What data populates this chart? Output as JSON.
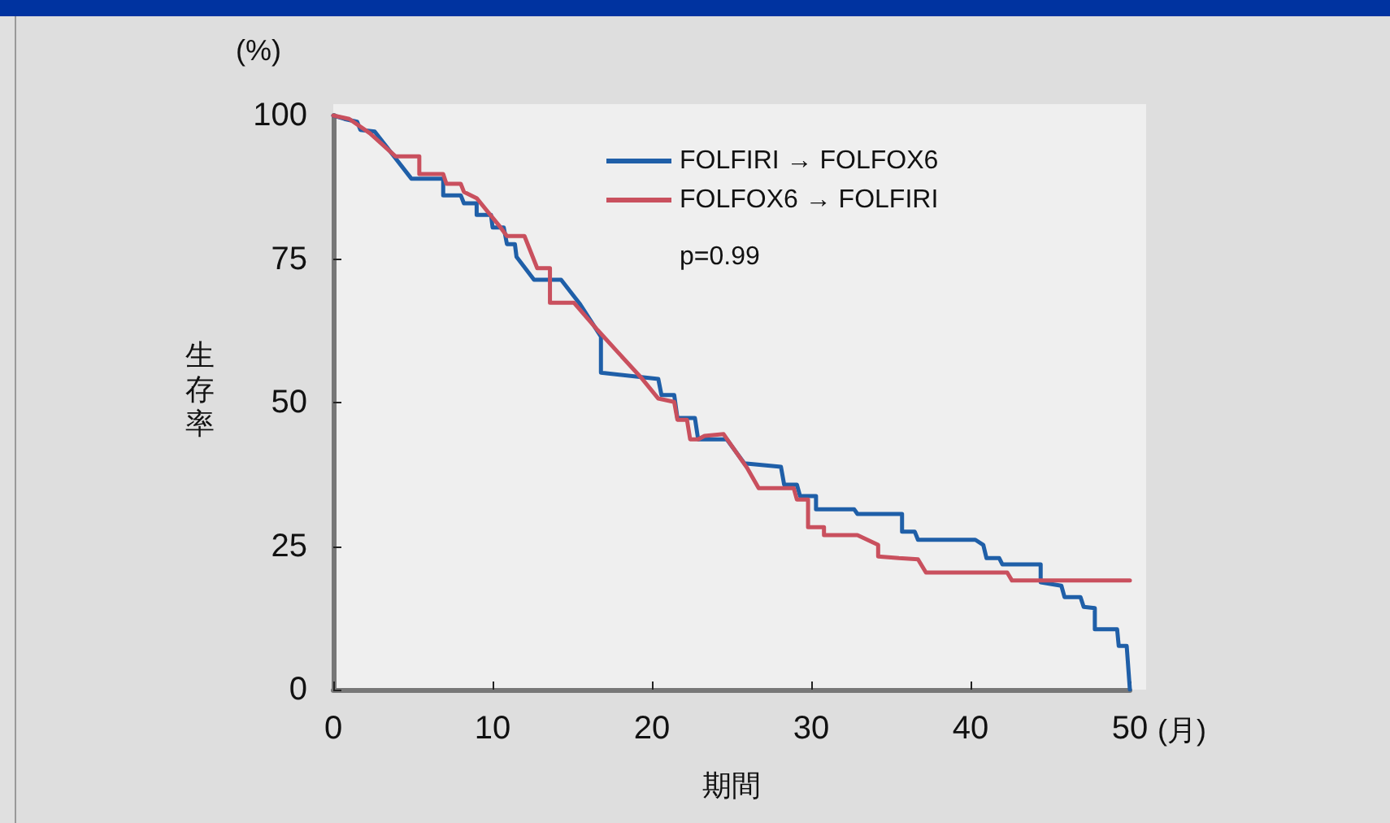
{
  "chart_data": {
    "type": "line",
    "xlabel": "期間",
    "ylabel": "生存率",
    "annotations": [
      "(%)",
      "(月)",
      "p=0.99"
    ],
    "xlim": [
      0,
      50
    ],
    "xticks": [
      0,
      10,
      20,
      30,
      40,
      50
    ],
    "ylim": [
      0,
      100
    ],
    "yticks": [
      0,
      25,
      50,
      75,
      100
    ],
    "grid": false,
    "legend": "top right",
    "marker": "none",
    "line_style": "solid",
    "series": [
      {
        "name": "FOLFIRI → FOLFOX6",
        "color": "#1f5fa8",
        "x": [
          0,
          0.7,
          1.5,
          1.7,
          2.6,
          4.9,
          6.9,
          6.9,
          8.0,
          8.2,
          9.0,
          9.0,
          9.9,
          10.0,
          10.7,
          10.9,
          11.4,
          11.5,
          12.6,
          14.3,
          15.5,
          16.8,
          16.8,
          20.4,
          20.6,
          21.4,
          21.6,
          22.7,
          22.9,
          24.7,
          25.8,
          28.1,
          28.3,
          29.1,
          29.3,
          30.3,
          30.3,
          32.7,
          32.9,
          35.7,
          35.7,
          36.5,
          36.7,
          40.3,
          40.8,
          41.0,
          41.8,
          42.0,
          44.4,
          44.4,
          45.7,
          45.9,
          46.9,
          47.1,
          47.8,
          47.8,
          49.2,
          49.3,
          49.8,
          50
        ],
        "values": [
          100,
          99.4,
          98.9,
          97.5,
          97.2,
          89.0,
          89.0,
          86.1,
          86.1,
          84.7,
          84.7,
          82.7,
          82.7,
          80.5,
          80.5,
          77.6,
          77.6,
          75.4,
          71.4,
          71.4,
          67.1,
          61.5,
          55.2,
          54.1,
          51.3,
          51.3,
          47.3,
          47.3,
          43.6,
          43.6,
          39.4,
          38.8,
          35.7,
          35.7,
          33.7,
          33.7,
          31.4,
          31.4,
          30.6,
          30.6,
          27.5,
          27.5,
          26.1,
          26.1,
          25.2,
          22.9,
          22.9,
          21.8,
          21.8,
          18.7,
          18.1,
          16.1,
          16.1,
          14.4,
          14.2,
          10.5,
          10.5,
          7.6,
          7.6,
          0
        ]
      },
      {
        "name": "FOLFOX6 → FOLFIRI",
        "color": "#c9505e",
        "x": [
          0,
          1.0,
          2.3,
          3.9,
          5.4,
          5.4,
          6.9,
          7.1,
          8.0,
          8.2,
          9.0,
          10.5,
          10.9,
          12.0,
          12.8,
          13.6,
          13.6,
          15.1,
          16.6,
          19.4,
          20.4,
          21.4,
          21.6,
          22.2,
          22.4,
          22.9,
          23.3,
          24.5,
          26.0,
          26.7,
          28.9,
          29.1,
          29.8,
          29.8,
          30.8,
          30.8,
          32.9,
          34.2,
          34.2,
          35.5,
          36.7,
          37.2,
          42.3,
          42.6,
          50
        ],
        "values": [
          100,
          99.4,
          96.9,
          92.9,
          92.9,
          89.8,
          89.8,
          88.1,
          88.1,
          86.7,
          85.6,
          80.5,
          79.0,
          79.0,
          73.4,
          73.4,
          67.4,
          67.4,
          62.6,
          54.1,
          50.7,
          50.1,
          47.0,
          47.0,
          43.6,
          43.6,
          44.2,
          44.5,
          38.5,
          35.1,
          35.1,
          33.1,
          33.1,
          28.3,
          28.3,
          26.9,
          26.9,
          25.2,
          23.2,
          22.9,
          22.7,
          20.4,
          20.4,
          19.0,
          19.0
        ]
      }
    ]
  }
}
